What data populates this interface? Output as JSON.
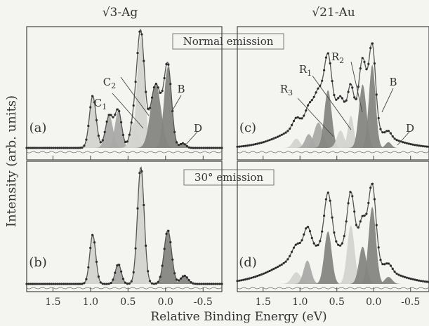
{
  "figure": {
    "ylabel": "Intensity (arb. units)",
    "xlabel": "Relative Binding Energy (eV)",
    "col_titles": [
      "√3-Ag",
      "√21-Au"
    ],
    "row_labels": [
      "Normal emission",
      "30° emission"
    ]
  },
  "chart_data": [
    {
      "panel": "(a)",
      "type": "line",
      "title": "√3-Ag",
      "row_label": "Normal emission",
      "xlim": [
        1.85,
        -0.75
      ],
      "xticks": [
        1.5,
        1.0,
        0.5,
        0.0,
        -0.5
      ],
      "annotations": [
        "C2",
        "C1",
        "B",
        "D"
      ],
      "components": [
        {
          "shade": "light",
          "center": 0.97,
          "amp": 0.45,
          "width": 0.045
        },
        {
          "shade": "mid",
          "center": 0.75,
          "amp": 0.28,
          "width": 0.05
        },
        {
          "shade": "mid",
          "center": 0.63,
          "amp": 0.32,
          "width": 0.045
        },
        {
          "shade": "light",
          "center": 0.33,
          "amp": 0.97,
          "width": 0.05
        },
        {
          "shade": "light",
          "center": 0.42,
          "amp": 0.22,
          "width": 0.05
        },
        {
          "shade": "dark",
          "center": 0.13,
          "amp": 0.55,
          "width": 0.07
        },
        {
          "shade": "dark",
          "center": -0.03,
          "amp": 0.7,
          "width": 0.05
        },
        {
          "shade": "dark",
          "center": -0.23,
          "amp": 0.04,
          "width": 0.04
        }
      ]
    },
    {
      "panel": "(b)",
      "type": "line",
      "title": "√3-Ag",
      "row_label": "30° emission",
      "xlim": [
        1.85,
        -0.75
      ],
      "xticks": [
        1.5,
        1.0,
        0.5,
        0.0,
        -0.5
      ],
      "annotations": [],
      "components": [
        {
          "shade": "light",
          "center": 0.97,
          "amp": 0.42,
          "width": 0.04
        },
        {
          "shade": "mid",
          "center": 0.63,
          "amp": 0.17,
          "width": 0.04
        },
        {
          "shade": "light",
          "center": 0.33,
          "amp": 1.0,
          "width": 0.045
        },
        {
          "shade": "dark",
          "center": -0.03,
          "amp": 0.46,
          "width": 0.05
        },
        {
          "shade": "dark",
          "center": -0.25,
          "amp": 0.07,
          "width": 0.05
        }
      ]
    },
    {
      "panel": "(c)",
      "type": "line",
      "title": "√21-Au",
      "row_label": "Normal emission",
      "xlim": [
        1.85,
        -0.75
      ],
      "xticks": [
        1.5,
        1.0,
        0.5,
        0.0,
        -0.5
      ],
      "annotations": [
        "R2",
        "R1",
        "R3",
        "B",
        "D"
      ],
      "components": [
        {
          "shade": "light",
          "center": 1.05,
          "amp": 0.08,
          "width": 0.05
        },
        {
          "shade": "mid",
          "center": 0.88,
          "amp": 0.12,
          "width": 0.05
        },
        {
          "shade": "mid",
          "center": 0.75,
          "amp": 0.22,
          "width": 0.06
        },
        {
          "shade": "dark",
          "center": 0.62,
          "amp": 0.5,
          "width": 0.05
        },
        {
          "shade": "light",
          "center": 0.45,
          "amp": 0.15,
          "width": 0.05
        },
        {
          "shade": "light",
          "center": 0.31,
          "amp": 0.28,
          "width": 0.04
        },
        {
          "shade": "dark",
          "center": 0.15,
          "amp": 0.55,
          "width": 0.05
        },
        {
          "shade": "dark",
          "center": 0.02,
          "amp": 0.72,
          "width": 0.045
        },
        {
          "shade": "dark",
          "center": -0.2,
          "amp": 0.05,
          "width": 0.04
        }
      ],
      "background": {
        "center": 0.55,
        "amp": 0.3,
        "width": 0.5
      }
    },
    {
      "panel": "(d)",
      "type": "line",
      "title": "√21-Au",
      "row_label": "30° emission",
      "xlim": [
        1.85,
        -0.75
      ],
      "xticks": [
        1.5,
        1.0,
        0.5,
        0.0,
        -0.5
      ],
      "annotations": [],
      "components": [
        {
          "shade": "light",
          "center": 1.05,
          "amp": 0.1,
          "width": 0.06
        },
        {
          "shade": "mid",
          "center": 0.9,
          "amp": 0.2,
          "width": 0.05
        },
        {
          "shade": "dark",
          "center": 0.62,
          "amp": 0.45,
          "width": 0.05
        },
        {
          "shade": "light",
          "center": 0.31,
          "amp": 0.5,
          "width": 0.05
        },
        {
          "shade": "dark",
          "center": 0.15,
          "amp": 0.32,
          "width": 0.05
        },
        {
          "shade": "dark",
          "center": 0.02,
          "amp": 0.66,
          "width": 0.05
        },
        {
          "shade": "dark",
          "center": -0.2,
          "amp": 0.06,
          "width": 0.05
        }
      ],
      "background": {
        "center": 0.6,
        "amp": 0.33,
        "width": 0.55
      }
    }
  ],
  "colors": {
    "light": "#d3d3d0",
    "mid": "#a9a9a6",
    "dark": "#858582",
    "fit_line": "#555555",
    "dots": "#2d2d2d",
    "frame": "#444444"
  }
}
